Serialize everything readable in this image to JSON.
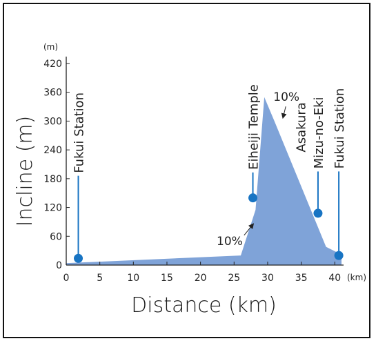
{
  "chart_data": {
    "type": "area",
    "title": "",
    "xlabel": "Distance (km)",
    "ylabel": "Incline (m)",
    "x_unit": "(km)",
    "y_unit": "(m)",
    "xlim": [
      0,
      41
    ],
    "ylim": [
      0,
      420
    ],
    "x_ticks": [
      "0",
      "5",
      "10",
      "15",
      "20",
      "25",
      "30",
      "35",
      "40"
    ],
    "y_ticks": [
      "0",
      "60",
      "120",
      "180",
      "240",
      "300",
      "360",
      "420"
    ],
    "fill_color": "#7fa3d8",
    "marker_color": "#1874c3",
    "profile": [
      {
        "x": 0,
        "y": 4
      },
      {
        "x": 26,
        "y": 20
      },
      {
        "x": 28.2,
        "y": 115
      },
      {
        "x": 29.5,
        "y": 350
      },
      {
        "x": 31,
        "y": 300
      },
      {
        "x": 38.7,
        "y": 38
      },
      {
        "x": 41,
        "y": 22
      },
      {
        "x": 41,
        "y": 0
      },
      {
        "x": 0,
        "y": 0
      }
    ],
    "markers": [
      {
        "label": "Fukui Station",
        "x": 1.8,
        "y": 14,
        "top_y": 186
      },
      {
        "label": "Eiheiji Temple",
        "x": 27.8,
        "y": 140,
        "top_y": 193
      },
      {
        "label": "Mizu-no-Eki",
        "x": 37.5,
        "y": 108,
        "top_y": 195
      },
      {
        "label": "Fukui Station",
        "x": 40.6,
        "y": 20,
        "top_y": 195
      }
    ],
    "annotations": [
      {
        "text": "10%",
        "x": 26.7,
        "y": 42
      },
      {
        "text": "10%",
        "x": 32.8,
        "y": 342
      },
      {
        "text": "Asakura",
        "x": 35,
        "y": 235
      }
    ]
  }
}
